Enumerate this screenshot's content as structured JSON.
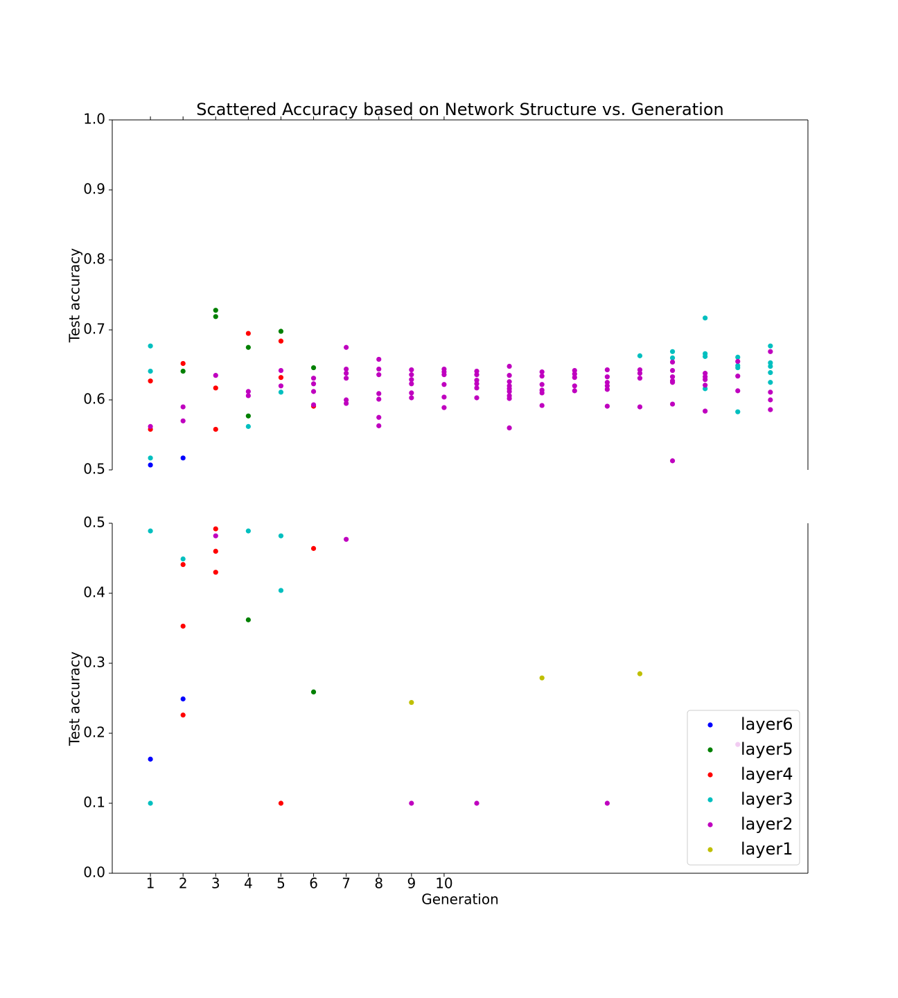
{
  "chart_data": [
    {
      "type": "scatter",
      "title": "Scattered Accuracy based on Network Structure vs. Generation",
      "y_label": "Test accuracy",
      "xlim": [
        -0.17,
        21.15
      ],
      "xticks": [
        1,
        2,
        3,
        4,
        5,
        6,
        7,
        8,
        9,
        10
      ],
      "ylim": [
        0.5,
        1.0
      ],
      "yticks": [
        0.5,
        0.6,
        0.7,
        0.8,
        0.9,
        {
          "value": 1.0,
          "label": "1.0"
        }
      ],
      "series": [
        {
          "color": "#0000ff",
          "x": [
            1,
            2
          ],
          "y": [
            0.507,
            0.517
          ]
        },
        {
          "color": "#008000",
          "x": [
            2,
            3,
            3,
            4,
            4,
            5,
            6
          ],
          "y": [
            0.641,
            0.728,
            0.719,
            0.675,
            0.577,
            0.698,
            0.646
          ]
        },
        {
          "color": "#ff0000",
          "x": [
            1,
            1,
            2,
            3,
            3,
            4,
            5,
            5,
            6
          ],
          "y": [
            0.627,
            0.558,
            0.652,
            0.617,
            0.558,
            0.695,
            0.684,
            0.632,
            0.591
          ]
        },
        {
          "color": "#00bfbf",
          "x": [
            1,
            1,
            1,
            4,
            5,
            16,
            17,
            17,
            18,
            18,
            18,
            18,
            19,
            19,
            19,
            19,
            20,
            20,
            20,
            20,
            20
          ],
          "y": [
            0.677,
            0.641,
            0.517,
            0.562,
            0.611,
            0.663,
            0.669,
            0.66,
            0.717,
            0.666,
            0.662,
            0.616,
            0.661,
            0.649,
            0.646,
            0.583,
            0.677,
            0.653,
            0.648,
            0.639,
            0.625
          ]
        },
        {
          "color": "#bf00bf",
          "x": [
            1,
            2,
            2,
            3,
            4,
            4,
            5,
            5,
            6,
            6,
            6,
            6,
            7,
            7,
            7,
            7,
            7,
            7,
            8,
            8,
            8,
            8,
            8,
            8,
            8,
            9,
            9,
            9,
            9,
            9,
            9,
            10,
            10,
            10,
            10,
            10,
            10,
            11,
            11,
            11,
            11,
            11,
            11,
            12,
            12,
            12,
            12,
            12,
            12,
            12,
            12,
            12,
            13,
            13,
            13,
            13,
            13,
            13,
            14,
            14,
            14,
            14,
            14,
            15,
            15,
            15,
            15,
            15,
            15,
            16,
            16,
            16,
            16,
            17,
            17,
            17,
            17,
            17,
            17,
            17,
            18,
            18,
            18,
            18,
            18,
            19,
            19,
            19,
            20,
            20,
            20,
            20
          ],
          "y": [
            0.562,
            0.59,
            0.57,
            0.635,
            0.612,
            0.606,
            0.642,
            0.62,
            0.631,
            0.623,
            0.612,
            0.593,
            0.675,
            0.644,
            0.638,
            0.631,
            0.6,
            0.595,
            0.658,
            0.644,
            0.636,
            0.609,
            0.601,
            0.575,
            0.563,
            0.643,
            0.636,
            0.629,
            0.623,
            0.61,
            0.603,
            0.644,
            0.64,
            0.636,
            0.622,
            0.604,
            0.589,
            0.641,
            0.636,
            0.628,
            0.623,
            0.617,
            0.603,
            0.648,
            0.635,
            0.626,
            0.62,
            0.616,
            0.612,
            0.606,
            0.602,
            0.56,
            0.64,
            0.634,
            0.622,
            0.614,
            0.61,
            0.592,
            0.642,
            0.637,
            0.632,
            0.62,
            0.613,
            0.643,
            0.633,
            0.625,
            0.62,
            0.615,
            0.591,
            0.643,
            0.638,
            0.631,
            0.59,
            0.654,
            0.642,
            0.633,
            0.627,
            0.625,
            0.594,
            0.513,
            0.638,
            0.633,
            0.629,
            0.621,
            0.584,
            0.655,
            0.634,
            0.613,
            0.669,
            0.611,
            0.6,
            0.586
          ]
        }
      ]
    },
    {
      "type": "scatter",
      "x_label": "Generation",
      "y_label": "Test accuracy",
      "legend": "lower right",
      "xlim": [
        -0.17,
        21.15
      ],
      "xticks": [
        1,
        2,
        3,
        4,
        5,
        6,
        7,
        8,
        9,
        10
      ],
      "ylim": [
        0.0,
        0.5
      ],
      "yticks": [
        {
          "value": 0.0,
          "label": "0.0"
        },
        0.1,
        0.2,
        0.3,
        0.4,
        0.5
      ],
      "series": [
        {
          "name": "layer6",
          "color": "#0000ff",
          "x": [
            1,
            2
          ],
          "y": [
            0.163,
            0.249
          ]
        },
        {
          "name": "layer5",
          "color": "#008000",
          "x": [
            4,
            6
          ],
          "y": [
            0.362,
            0.259
          ]
        },
        {
          "name": "layer4",
          "color": "#ff0000",
          "x": [
            2,
            2,
            2,
            3,
            3,
            3,
            5,
            6
          ],
          "y": [
            0.441,
            0.353,
            0.226,
            0.492,
            0.46,
            0.43,
            0.1,
            0.464
          ]
        },
        {
          "name": "layer3",
          "color": "#00bfbf",
          "x": [
            1,
            1,
            2,
            4,
            5,
            5
          ],
          "y": [
            0.489,
            0.1,
            0.449,
            0.489,
            0.482,
            0.404
          ]
        },
        {
          "name": "layer2",
          "color": "#bf00bf",
          "x": [
            3,
            7,
            9,
            11,
            15,
            19
          ],
          "y": [
            0.482,
            0.477,
            0.1,
            0.1,
            0.1,
            0.184
          ]
        },
        {
          "name": "layer1",
          "color": "#bfbf00",
          "x": [
            9,
            13,
            16
          ],
          "y": [
            0.244,
            0.279,
            0.285
          ]
        }
      ]
    }
  ]
}
